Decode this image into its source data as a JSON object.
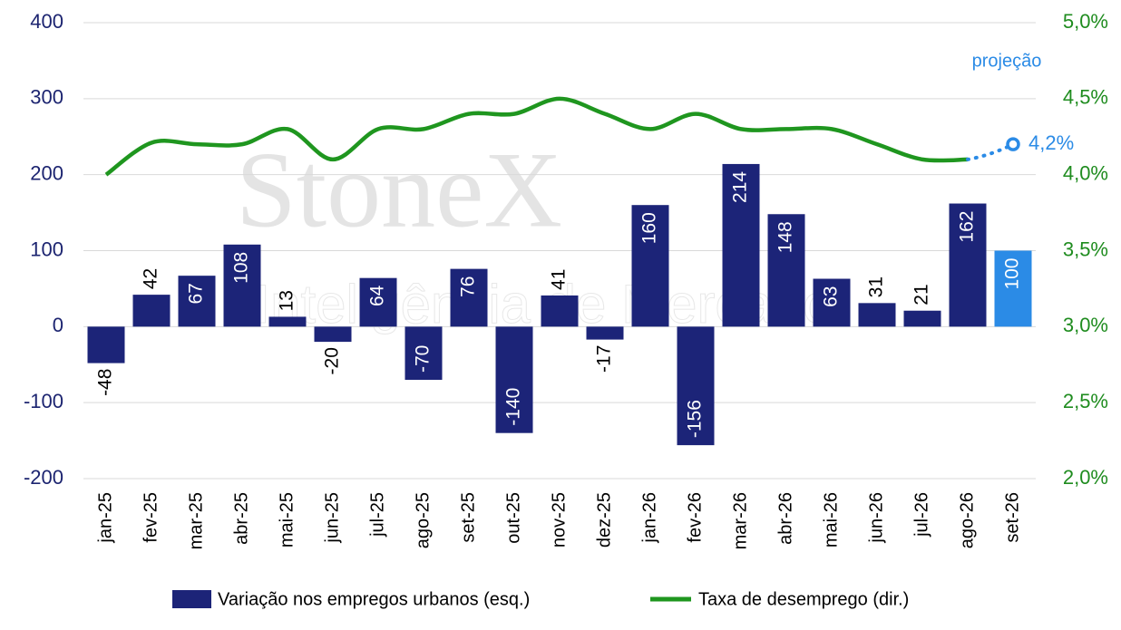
{
  "chart_data": {
    "type": "bar_line",
    "categories": [
      "jan-25",
      "fev-25",
      "mar-25",
      "abr-25",
      "mai-25",
      "jun-25",
      "jul-25",
      "ago-25",
      "set-25",
      "out-25",
      "nov-25",
      "dez-25",
      "jan-26",
      "fev-26",
      "mar-26",
      "abr-26",
      "mai-26",
      "jun-26",
      "jul-26",
      "ago-26",
      "set-26"
    ],
    "series": [
      {
        "name": "Variação nos empregos urbanos (esq.)",
        "type": "bar",
        "axis": "y",
        "color": "#1c2478",
        "colors": [
          "#1c2478",
          "#1c2478",
          "#1c2478",
          "#1c2478",
          "#1c2478",
          "#1c2478",
          "#1c2478",
          "#1c2478",
          "#1c2478",
          "#1c2478",
          "#1c2478",
          "#1c2478",
          "#1c2478",
          "#1c2478",
          "#1c2478",
          "#1c2478",
          "#1c2478",
          "#1c2478",
          "#1c2478",
          "#1c2478",
          "#2b8be6"
        ],
        "values": [
          -48,
          42,
          67,
          108,
          13,
          -20,
          64,
          -70,
          76,
          -140,
          41,
          -17,
          160,
          -156,
          214,
          148,
          63,
          31,
          21,
          162,
          100
        ]
      },
      {
        "name": "Taxa de desemprego (dir.)",
        "type": "line",
        "axis": "y2",
        "color": "#1f961f",
        "values": [
          4.0,
          4.21,
          4.2,
          4.2,
          4.3,
          4.1,
          4.3,
          4.3,
          4.4,
          4.4,
          4.5,
          4.4,
          4.3,
          4.4,
          4.3,
          4.3,
          4.3,
          4.2,
          4.1,
          4.1,
          null
        ]
      }
    ],
    "projection": {
      "label": "projeção",
      "color": "#2b8be6",
      "values": [
        null,
        null,
        null,
        null,
        null,
        null,
        null,
        null,
        null,
        null,
        null,
        null,
        null,
        null,
        null,
        null,
        null,
        null,
        null,
        null,
        4.2
      ],
      "value_labels": [
        null,
        null,
        null,
        null,
        null,
        null,
        null,
        null,
        null,
        null,
        null,
        null,
        null,
        null,
        null,
        null,
        null,
        null,
        null,
        null,
        "4,2%"
      ]
    },
    "ylim": [
      -200,
      400
    ],
    "yticks": [
      -200,
      -100,
      0,
      100,
      200,
      300,
      400
    ],
    "y2lim": [
      2.0,
      5.0
    ],
    "y2ticks": [
      {
        "value": 2.0,
        "label": "2,0%"
      },
      {
        "value": 2.5,
        "label": "2,5%"
      },
      {
        "value": 3.0,
        "label": "3,0%"
      },
      {
        "value": 3.5,
        "label": "3,5%"
      },
      {
        "value": 4.0,
        "label": "4,0%"
      },
      {
        "value": 4.5,
        "label": "4,5%"
      },
      {
        "value": 5.0,
        "label": "5,0%"
      }
    ],
    "grid": true,
    "legend": "bottom",
    "watermark": "StoneX",
    "watermark_subtitle": "Inteligência de Mercado"
  }
}
